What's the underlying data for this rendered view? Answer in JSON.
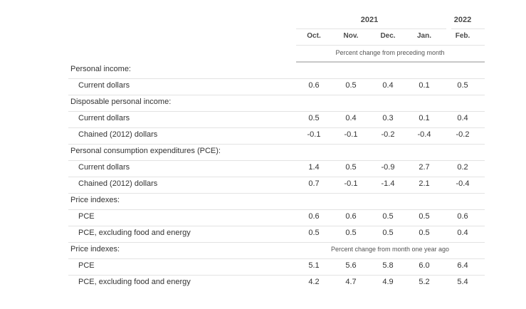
{
  "header": {
    "years": [
      "2021",
      "2022"
    ],
    "months": [
      "Oct.",
      "Nov.",
      "Dec.",
      "Jan.",
      "Feb."
    ],
    "unit_label": "Percent change from preceding month"
  },
  "rows": [
    {
      "label": "Personal income:",
      "type": "section",
      "values": []
    },
    {
      "label": "Current dollars",
      "type": "item",
      "values": [
        "0.6",
        "0.5",
        "0.4",
        "0.1",
        "0.5"
      ]
    },
    {
      "label": "Disposable personal income:",
      "type": "section",
      "values": []
    },
    {
      "label": "Current dollars",
      "type": "item",
      "values": [
        "0.5",
        "0.4",
        "0.3",
        "0.1",
        "0.4"
      ]
    },
    {
      "label": "Chained (2012) dollars",
      "type": "item",
      "values": [
        "-0.1",
        "-0.1",
        "-0.2",
        "-0.4",
        "-0.2"
      ]
    },
    {
      "label": "Personal consumption expenditures (PCE):",
      "type": "section",
      "values": []
    },
    {
      "label": "Current dollars",
      "type": "item",
      "values": [
        "1.4",
        "0.5",
        "-0.9",
        "2.7",
        "0.2"
      ]
    },
    {
      "label": "Chained (2012) dollars",
      "type": "item",
      "values": [
        "0.7",
        "-0.1",
        "-1.4",
        "2.1",
        "-0.4"
      ]
    },
    {
      "label": "Price indexes:",
      "type": "section",
      "values": []
    },
    {
      "label": "PCE",
      "type": "item",
      "values": [
        "0.6",
        "0.6",
        "0.5",
        "0.5",
        "0.6"
      ]
    },
    {
      "label": "PCE, excluding food and energy",
      "type": "item",
      "values": [
        "0.5",
        "0.5",
        "0.5",
        "0.5",
        "0.4"
      ]
    },
    {
      "label": "Price indexes:",
      "type": "section",
      "note": "Percent change from month one year ago",
      "values": []
    },
    {
      "label": "PCE",
      "type": "item",
      "values": [
        "5.1",
        "5.6",
        "5.8",
        "6.0",
        "6.4"
      ]
    },
    {
      "label": "PCE, excluding food and energy",
      "type": "item",
      "values": [
        "4.2",
        "4.7",
        "4.9",
        "5.2",
        "5.4"
      ]
    }
  ]
}
